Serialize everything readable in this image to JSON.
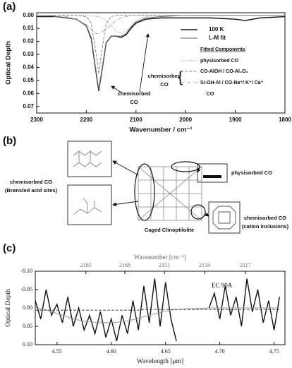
{
  "chart_data": [
    {
      "type": "line",
      "panel_label": "(a)",
      "xlabel": "Wavenumber / cm⁻¹",
      "ylabel": "Optical Depth",
      "xlim": [
        2300,
        1800
      ],
      "xticks": [
        2300,
        2200,
        2100,
        2000,
        1900,
        1800
      ],
      "ylim": [
        -0.002,
        0.075
      ],
      "y_inverted": true,
      "yticks": [
        {
          "value": 0,
          "label": "0.00"
        },
        {
          "value": 0.01,
          "label": "0.01"
        },
        {
          "value": 0.02,
          "label": "0.02"
        },
        {
          "value": 0.03,
          "label": "0.03"
        },
        {
          "value": 0.04,
          "label": "0.04"
        },
        {
          "value": 0.05,
          "label": "0.05"
        },
        {
          "value": 0.06,
          "label": "0.06"
        },
        {
          "value": 0.07,
          "label": "0.07"
        }
      ],
      "legend_heading": "Fitted Components",
      "annotations": [
        "chemisorbed",
        "CO",
        "chemisorbed",
        "CO",
        "CO"
      ],
      "x": [
        2300,
        2280,
        2260,
        2240,
        2220,
        2200,
        2190,
        2180,
        2175,
        2170,
        2160,
        2150,
        2140,
        2130,
        2120,
        2110,
        2100,
        2080,
        2050,
        2000,
        1950,
        1900,
        1880,
        1850,
        1800
      ],
      "series": [
        {
          "name": "100 K",
          "color": "#111111",
          "style": "solid",
          "values": [
            0.001,
            0.001,
            0.001,
            0.002,
            0.003,
            0.008,
            0.018,
            0.045,
            0.058,
            0.046,
            0.021,
            0.016,
            0.016,
            0.017,
            0.015,
            0.01,
            0.006,
            0.003,
            0.002,
            0.002,
            0.002,
            0.003,
            0.004,
            0.002,
            0.001
          ]
        },
        {
          "name": "L-M fit",
          "color": "#666666",
          "style": "solid",
          "values": [
            0,
            0,
            0.001,
            0.002,
            0.003,
            0.008,
            0.017,
            0.044,
            0.057,
            0.045,
            0.021,
            0.016,
            0.016,
            0.016,
            0.014,
            0.009,
            0.005,
            0.002,
            0.001,
            0,
            0,
            0,
            0,
            0,
            0
          ]
        },
        {
          "name": "physisorbed CO",
          "color": "#999999",
          "style": "dotted",
          "values": [
            0,
            0,
            0,
            0,
            0,
            0,
            0,
            0.001,
            0.001,
            0.002,
            0.004,
            0.008,
            0.012,
            0.014,
            0.012,
            0.008,
            0.004,
            0.001,
            0,
            0,
            0,
            0,
            0,
            0,
            0
          ]
        },
        {
          "name": "CO-AlOH / CO-Al₂O₃",
          "color": "#888888",
          "style": "dashed",
          "values": [
            0,
            0,
            0,
            0,
            0,
            0.001,
            0.006,
            0.03,
            0.045,
            0.03,
            0.006,
            0.001,
            0,
            0,
            0,
            0,
            0,
            0,
            0,
            0,
            0,
            0,
            0,
            0,
            0
          ]
        },
        {
          "name": "Si-OH-Al / CO-Na⁺/ K⁺/ Ca⁺",
          "color": "#aaaaaa",
          "style": "dashdot",
          "values": [
            0,
            0,
            0,
            0.001,
            0.003,
            0.007,
            0.011,
            0.014,
            0.014,
            0.013,
            0.011,
            0.007,
            0.004,
            0.002,
            0.001,
            0,
            0,
            0,
            0,
            0,
            0,
            0,
            0,
            0,
            0
          ]
        }
      ]
    },
    {
      "type": "line",
      "panel_label": "(c)",
      "xlabel": "Wavelength [μm]",
      "x2label": "Wavenumber [cm⁻¹]",
      "ylabel": "Optical Depth",
      "annotations": [
        "EC 90A"
      ],
      "xlim": [
        4.53,
        4.76
      ],
      "xticks": [
        {
          "value": 4.55,
          "label": "4.55"
        },
        {
          "value": 4.6,
          "label": "4.60"
        },
        {
          "value": 4.65,
          "label": "4.65"
        },
        {
          "value": 4.7,
          "label": "4.70"
        },
        {
          "value": 4.75,
          "label": "4.75"
        }
      ],
      "x2lim": [
        2207.5,
        2100.8
      ],
      "x2ticks": [
        2185,
        2168,
        2151,
        2134,
        2117
      ],
      "ylim": [
        -0.1,
        0.1
      ],
      "y_inverted": true,
      "yticks": [
        {
          "value": -0.1,
          "label": "-0.10"
        },
        {
          "value": -0.05,
          "label": "-0.05"
        },
        {
          "value": 0,
          "label": "0.00"
        },
        {
          "value": 0.05,
          "label": "0.05"
        },
        {
          "value": 0.1,
          "label": "0.10"
        }
      ],
      "x": [
        4.53,
        4.535,
        4.54,
        4.545,
        4.55,
        4.555,
        4.56,
        4.565,
        4.57,
        4.575,
        4.58,
        4.585,
        4.59,
        4.595,
        4.6,
        4.605,
        4.61,
        4.615,
        4.62,
        4.625,
        4.63,
        4.635,
        4.64,
        4.645,
        4.65,
        4.655,
        4.66,
        4.665,
        4.67,
        4.675,
        4.68,
        4.685,
        4.69,
        4.695,
        4.7,
        4.705,
        4.71,
        4.715,
        4.72,
        4.725,
        4.73,
        4.735,
        4.74,
        4.745,
        4.75,
        4.755
      ],
      "series": [
        {
          "color": "#111111",
          "style": "solid",
          "values": [
            -0.02,
            0.03,
            -0.05,
            0.02,
            -0.01,
            0.04,
            -0.03,
            0.05,
            0.0,
            0.06,
            0.02,
            0.07,
            0.01,
            0.08,
            0.03,
            0.09,
            0.02,
            0.07,
            -0.02,
            0.06,
            -0.06,
            0.04,
            -0.08,
            0.05,
            -0.07,
            0.03,
            0.09,
            null,
            null,
            null,
            null,
            null,
            0.0,
            -0.04,
            0.03,
            -0.06,
            0.02,
            -0.03,
            0.05,
            -0.08,
            0.01,
            -0.05,
            0.04,
            -0.02,
            0.06,
            -0.03
          ]
        },
        {
          "color": "#999999",
          "style": "solid",
          "values": [
            0,
            0.002,
            0.005,
            0.01,
            0.015,
            0.02,
            0.025,
            0.03,
            0.033,
            0.036,
            0.038,
            0.039,
            0.04,
            0.04,
            0.04,
            0.039,
            0.037,
            0.035,
            0.032,
            0.028,
            0.024,
            0.02,
            0.016,
            0.012,
            0.009,
            0.006,
            0.004,
            0.003,
            0.002,
            0.002,
            0.001,
            0.001,
            0,
            0,
            0,
            0,
            0,
            0,
            0,
            0,
            0,
            0,
            0,
            0,
            0,
            0
          ]
        },
        {
          "color": "#444444",
          "style": "dashed",
          "values": [
            0.006,
            0.006,
            0.006,
            0.006,
            0.006,
            0.006,
            0.006,
            0.006,
            0.006,
            0.006,
            0.006,
            0.006,
            0.006,
            0.006,
            0.006,
            0.006,
            0.006,
            0.006,
            0.006,
            0.006,
            0.004,
            0.004,
            0.004,
            0.004,
            0.004,
            0.004,
            0.004,
            0.004,
            0.004,
            0.004,
            0.004,
            0.004,
            0.004,
            0.004,
            0.004,
            0.004,
            0.004,
            0.004,
            0.004,
            0.004,
            0.004,
            0.004,
            0.004,
            0.004,
            0.004,
            0.004
          ]
        }
      ]
    }
  ],
  "diagram": {
    "panel_label": "(b)",
    "nodes": [
      {
        "label": "chemisorbed CO",
        "sublabel": "(Brønsted acid sites)"
      },
      {
        "label": "physisorbed CO"
      },
      {
        "label": "chemisorbed CO",
        "sublabel": "(cation inclusions)"
      },
      {
        "label": "Caged Clinoptilolite"
      }
    ]
  }
}
